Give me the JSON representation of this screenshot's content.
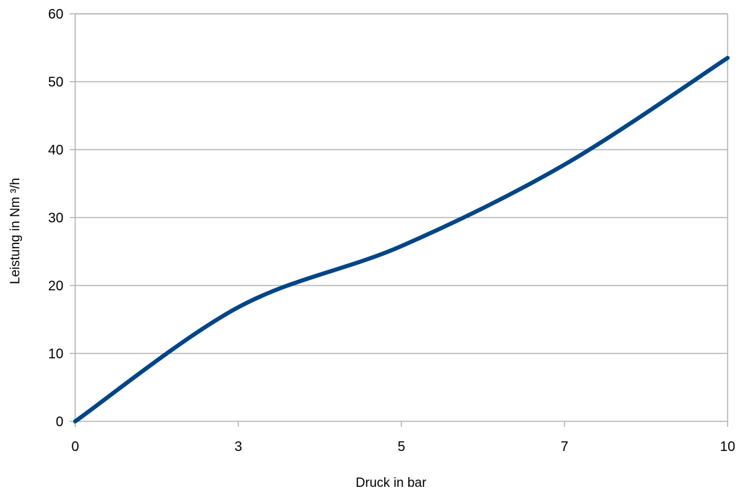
{
  "chart_data": {
    "type": "line",
    "xlabel": "Druck in bar",
    "ylabel": "Leistung in Nm ³/h",
    "x_tick_labels": [
      "0",
      "3",
      "5",
      "7",
      "10"
    ],
    "y_ticks": [
      0,
      10,
      20,
      30,
      40,
      50,
      60
    ],
    "ylim": [
      0,
      60
    ],
    "grid": true,
    "line_color": "#004586",
    "series": [
      {
        "points": [
          {
            "x_label": "0",
            "y": 0
          },
          {
            "x_label": "3",
            "y": 16.8
          },
          {
            "x_label": "5",
            "y": 25.8
          },
          {
            "x_label": "7",
            "y": 37.8
          },
          {
            "x_label": "10",
            "y": 53.5
          }
        ]
      }
    ]
  }
}
